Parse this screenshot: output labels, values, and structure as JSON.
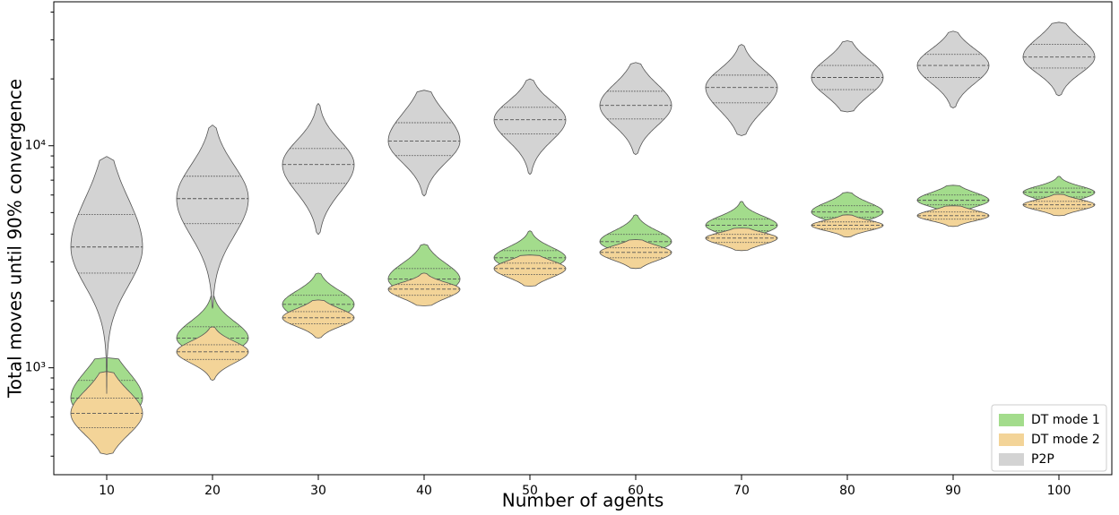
{
  "chart_data": {
    "type": "violin",
    "xlabel": "Number of agents",
    "ylabel": "Total moves until 90% convergence",
    "categories": [
      "10",
      "20",
      "30",
      "40",
      "50",
      "60",
      "70",
      "80",
      "90",
      "100"
    ],
    "log_y": true,
    "ylim": [
      330,
      44500
    ],
    "yticks": [
      {
        "value": 1000,
        "label": "10³"
      },
      {
        "value": 10000,
        "label": "10⁴"
      }
    ],
    "yminorticks": [
      400,
      500,
      600,
      700,
      800,
      900,
      2000,
      3000,
      4000,
      5000,
      6000,
      7000,
      8000,
      9000,
      20000,
      30000,
      40000
    ],
    "legend_position": "lower right",
    "series": [
      {
        "name": "DT mode 1",
        "color": "#a3dc8c",
        "min": [
          552,
          1160,
          1600,
          2120,
          2670,
          3070,
          3630,
          4140,
          4890,
          5370
        ],
        "q1": [
          634,
          1240,
          1760,
          2280,
          2910,
          3470,
          4140,
          4760,
          5420,
          5880
        ],
        "median": [
          730,
          1360,
          1930,
          2510,
          3130,
          3700,
          4380,
          5030,
          5680,
          6170
        ],
        "q3": [
          878,
          1530,
          2120,
          2800,
          3370,
          3990,
          4670,
          5370,
          6000,
          6440
        ],
        "max": [
          1110,
          2120,
          2670,
          3600,
          4140,
          4890,
          5620,
          6170,
          6640,
          7290
        ]
      },
      {
        "name": "DT mode 2",
        "color": "#f3d498",
        "min": [
          407,
          878,
          1360,
          1900,
          2330,
          2800,
          3370,
          3880,
          4330,
          4840
        ],
        "q1": [
          537,
          1090,
          1580,
          2120,
          2630,
          3130,
          3670,
          4220,
          4670,
          5220
        ],
        "median": [
          623,
          1180,
          1680,
          2260,
          2800,
          3310,
          3840,
          4380,
          4840,
          5420
        ],
        "q3": [
          730,
          1270,
          1790,
          2370,
          2960,
          3470,
          3990,
          4540,
          5030,
          5620
        ],
        "max": [
          963,
          1530,
          2020,
          2670,
          3220,
          3780,
          4260,
          4890,
          5370,
          6050
        ]
      },
      {
        "name": "P2P",
        "color": "#d3d3d3",
        "min": [
          764,
          1850,
          3990,
          5940,
          7430,
          9120,
          11100,
          14200,
          14800,
          16800
        ],
        "q1": [
          2670,
          4460,
          6770,
          9030,
          11300,
          13200,
          15600,
          17900,
          20300,
          22400
        ],
        "median": [
          3500,
          5780,
          8230,
          10500,
          13100,
          15200,
          18300,
          20300,
          23000,
          25100
        ],
        "q3": [
          4900,
          7290,
          9720,
          12700,
          14900,
          17600,
          20800,
          23000,
          25800,
          28600
        ],
        "max": [
          8950,
          12400,
          15500,
          17800,
          20000,
          23700,
          28600,
          29700,
          32800,
          36000
        ]
      }
    ]
  }
}
